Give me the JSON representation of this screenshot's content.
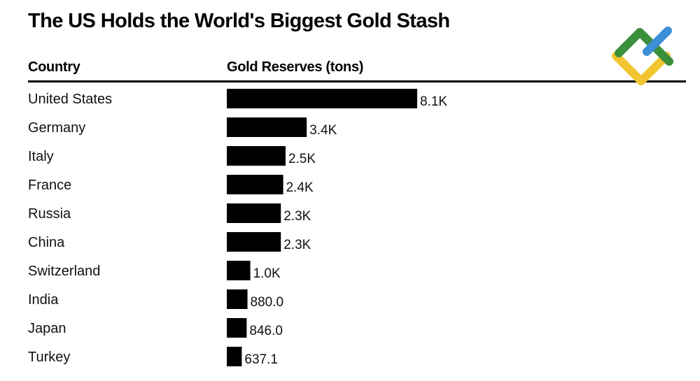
{
  "title": "The US Holds the World's Biggest Gold Stash",
  "headers": {
    "country": "Country",
    "value": "Gold Reserves (tons)"
  },
  "colors": {
    "bar": "#000000",
    "logo_green": "#3a8f3a",
    "logo_blue": "#3c8fd6",
    "logo_yellow": "#f2c530"
  },
  "logo_icon": "brand-logo-icon",
  "chart_data": {
    "type": "bar",
    "orientation": "horizontal",
    "title": "The US Holds the World's Biggest Gold Stash",
    "xlabel": "Gold Reserves (tons)",
    "ylabel": "Country",
    "categories": [
      "United States",
      "Germany",
      "Italy",
      "France",
      "Russia",
      "China",
      "Switzerland",
      "India",
      "Japan",
      "Turkey"
    ],
    "values": [
      8100,
      3400,
      2500,
      2400,
      2300,
      2300,
      1000,
      880.0,
      846.0,
      637.1
    ],
    "value_labels": [
      "8.1K",
      "3.4K",
      "2.5K",
      "2.4K",
      "2.3K",
      "2.3K",
      "1.0K",
      "880.0",
      "846.0",
      "637.1"
    ],
    "xlim": [
      0,
      8100
    ],
    "grid": false,
    "legend": "none"
  }
}
